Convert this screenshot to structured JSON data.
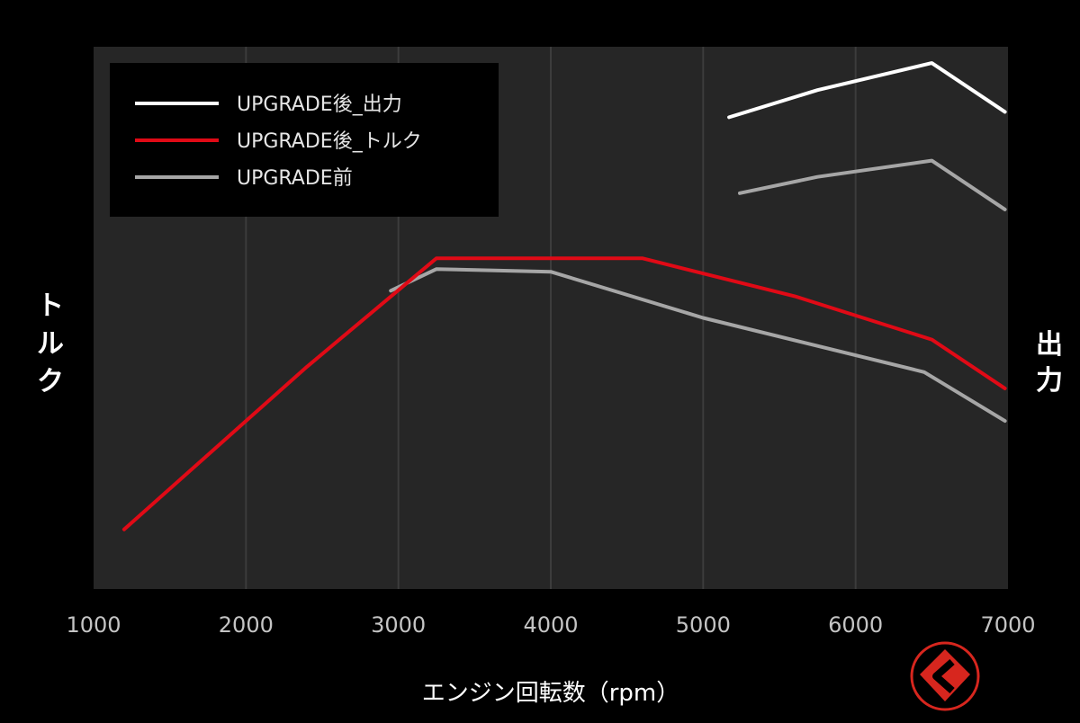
{
  "chart_data": {
    "type": "line",
    "xlabel": "エンジン回転数（rpm）",
    "ylabel_left": "トルク",
    "ylabel_right": "出力",
    "xlim": [
      1000,
      7000
    ],
    "xticks": [
      1000,
      2000,
      3000,
      4000,
      5000,
      6000,
      7000
    ],
    "grid": "vertical",
    "legend_position": "top-left",
    "y_tick_labels": "none",
    "series": [
      {
        "name": "UPGRADE後_出力",
        "axis": "right",
        "color": "#ffffff",
        "points": [
          [
            5170,
            87
          ],
          [
            5750,
            92
          ],
          [
            6500,
            97
          ],
          [
            6980,
            88
          ]
        ]
      },
      {
        "name": "UPGRADE後_トルク",
        "axis": "left",
        "color": "#e00a16",
        "points": [
          [
            1200,
            11
          ],
          [
            2400,
            41
          ],
          [
            3250,
            61
          ],
          [
            4600,
            61
          ],
          [
            5600,
            54
          ],
          [
            6500,
            46
          ],
          [
            6980,
            37
          ]
        ]
      },
      {
        "name": "UPGRADE前",
        "axis": "left",
        "color": "#a6a6a6",
        "points": [
          [
            2950,
            55
          ],
          [
            3250,
            59
          ],
          [
            4000,
            58.5
          ],
          [
            5000,
            50
          ],
          [
            6450,
            40
          ],
          [
            6980,
            31
          ]
        ]
      },
      {
        "name": "",
        "axis": "right",
        "color": "#a6a6a6",
        "points": [
          [
            5240,
            73
          ],
          [
            5750,
            76
          ],
          [
            6500,
            79
          ],
          [
            6980,
            70
          ]
        ]
      }
    ]
  },
  "watermark": {
    "name": "kuruma-news-logo"
  },
  "colors": {
    "background": "#000000",
    "plot_area": "#262626",
    "grid": "#3c3c3c",
    "legend_box": "#000000",
    "tick_text": "#c4c4c4",
    "label_text": "#ffffff",
    "logo_red": "#d7261e"
  }
}
